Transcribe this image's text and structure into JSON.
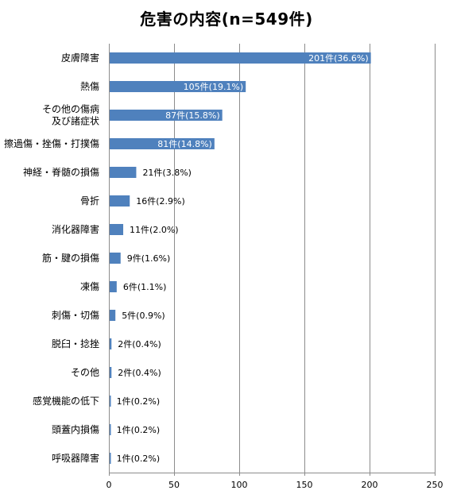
{
  "chart_data": {
    "type": "bar",
    "orientation": "horizontal",
    "title": "危害の内容(n=549件)",
    "categories": [
      "皮膚障害",
      "熱傷",
      "その他の傷病\n及び諸症状",
      "擦過傷・挫傷・打撲傷",
      "神経・脊髄の損傷",
      "骨折",
      "消化器障害",
      "筋・腱の損傷",
      "凍傷",
      "刺傷・切傷",
      "脱臼・捻挫",
      "その他",
      "感覚機能の低下",
      "頭蓋内損傷",
      "呼吸器障害"
    ],
    "values": [
      201,
      105,
      87,
      81,
      21,
      16,
      11,
      9,
      6,
      5,
      2,
      2,
      1,
      1,
      1
    ],
    "data_labels": [
      "201件(36.6%)",
      "105件(19.1%)",
      "87件(15.8%)",
      "81件(14.8%)",
      "21件(3.8%)",
      "16件(2.9%)",
      "11件(2.0%)",
      "9件(1.6%)",
      "6件(1.1%)",
      "5件(0.9%)",
      "2件(0.4%)",
      "2件(0.4%)",
      "1件(0.2%)",
      "1件(0.2%)",
      "1件(0.2%)"
    ],
    "xlim": [
      0,
      250
    ],
    "xticks": [
      0,
      50,
      100,
      150,
      200,
      250
    ],
    "xlabel": "",
    "ylabel": "",
    "grid": "vertical",
    "legend": "none",
    "colors": {
      "bar": "#4f81bd",
      "grid": "#8c8c8c",
      "axis": "#8c8c8c"
    }
  }
}
